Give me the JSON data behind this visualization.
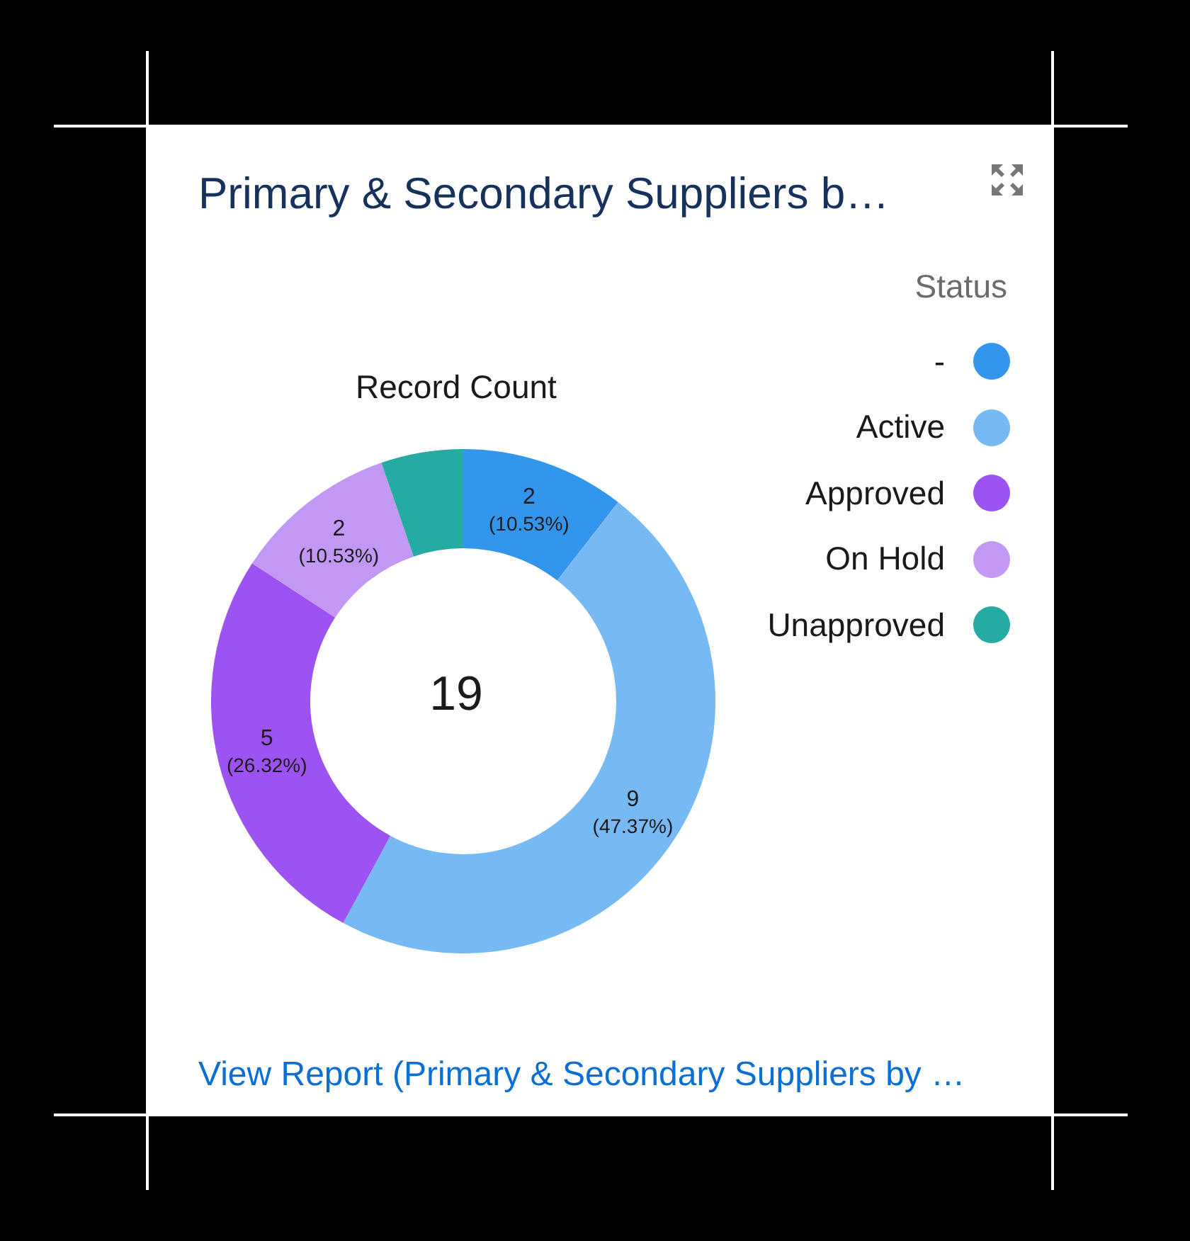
{
  "chart_data": {
    "type": "donut",
    "title": "Primary & Secondary Suppliers b…",
    "subtitle": "Record Count",
    "legend_title": "Status",
    "legend": "top right",
    "categories": [
      "-",
      "Active",
      "Approved",
      "On Hold",
      "Unapproved"
    ],
    "values": [
      2,
      9,
      5,
      2,
      1
    ],
    "colors": [
      "#3296ed",
      "#77b9f2",
      "#9d53f2",
      "#c398f5",
      "#26aba4"
    ],
    "value_labels": [
      "2\n(10.53%)",
      "9\n(47.37%)",
      "5\n(26.32%)",
      "2\n(10.53%)",
      null
    ],
    "annotations": [
      "19",
      "View Report (Primary & Secondary Suppliers by …"
    ]
  }
}
